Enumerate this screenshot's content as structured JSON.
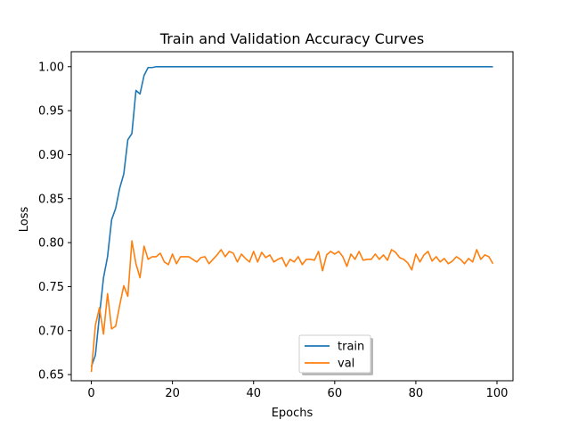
{
  "chart_data": {
    "type": "line",
    "title": "Train and Validation Accuracy Curves",
    "xlabel": "Epochs",
    "ylabel": "Loss",
    "xlim": [
      -4.95,
      103.95
    ],
    "ylim": [
      0.643,
      1.017
    ],
    "xticks": [
      0,
      20,
      40,
      60,
      80,
      100
    ],
    "yticks": [
      0.65,
      0.7,
      0.75,
      0.8,
      0.85,
      0.9,
      0.95,
      1.0
    ],
    "ytick_labels": [
      "0.65",
      "0.70",
      "0.75",
      "0.80",
      "0.85",
      "0.90",
      "0.95",
      "1.00"
    ],
    "grid": false,
    "legend": {
      "position": "lower-center"
    },
    "series": [
      {
        "name": "train",
        "color": "#1f77b4",
        "x": [
          0,
          1,
          2,
          3,
          4,
          5,
          6,
          7,
          8,
          9,
          10,
          11,
          12,
          13,
          14,
          15,
          16,
          17,
          18,
          19,
          20,
          21,
          22,
          23,
          24,
          25,
          26,
          27,
          28,
          29,
          30,
          31,
          32,
          33,
          34,
          35,
          36,
          37,
          38,
          39,
          40,
          41,
          42,
          43,
          44,
          45,
          46,
          47,
          48,
          49,
          50,
          51,
          52,
          53,
          54,
          55,
          56,
          57,
          58,
          59,
          60,
          61,
          62,
          63,
          64,
          65,
          66,
          67,
          68,
          69,
          70,
          71,
          72,
          73,
          74,
          75,
          76,
          77,
          78,
          79,
          80,
          81,
          82,
          83,
          84,
          85,
          86,
          87,
          88,
          89,
          90,
          91,
          92,
          93,
          94,
          95,
          96,
          97,
          98,
          99
        ],
        "values": [
          0.659,
          0.672,
          0.717,
          0.76,
          0.784,
          0.826,
          0.839,
          0.862,
          0.878,
          0.917,
          0.924,
          0.973,
          0.969,
          0.99,
          0.999,
          0.999,
          1.0,
          1.0,
          1.0,
          1.0,
          1.0,
          1.0,
          1.0,
          1.0,
          1.0,
          1.0,
          1.0,
          1.0,
          1.0,
          1.0,
          1.0,
          1.0,
          1.0,
          1.0,
          1.0,
          1.0,
          1.0,
          1.0,
          1.0,
          1.0,
          1.0,
          1.0,
          1.0,
          1.0,
          1.0,
          1.0,
          1.0,
          1.0,
          1.0,
          1.0,
          1.0,
          1.0,
          1.0,
          1.0,
          1.0,
          1.0,
          1.0,
          1.0,
          1.0,
          1.0,
          1.0,
          1.0,
          1.0,
          1.0,
          1.0,
          1.0,
          1.0,
          1.0,
          1.0,
          1.0,
          1.0,
          1.0,
          1.0,
          1.0,
          1.0,
          1.0,
          1.0,
          1.0,
          1.0,
          1.0,
          1.0,
          1.0,
          1.0,
          1.0,
          1.0,
          1.0,
          1.0,
          1.0,
          1.0,
          1.0,
          1.0,
          1.0,
          1.0,
          1.0,
          1.0,
          1.0,
          1.0,
          1.0,
          1.0,
          1.0
        ]
      },
      {
        "name": "val",
        "color": "#ff7f0e",
        "x": [
          0,
          1,
          2,
          3,
          4,
          5,
          6,
          7,
          8,
          9,
          10,
          11,
          12,
          13,
          14,
          15,
          16,
          17,
          18,
          19,
          20,
          21,
          22,
          23,
          24,
          25,
          26,
          27,
          28,
          29,
          30,
          31,
          32,
          33,
          34,
          35,
          36,
          37,
          38,
          39,
          40,
          41,
          42,
          43,
          44,
          45,
          46,
          47,
          48,
          49,
          50,
          51,
          52,
          53,
          54,
          55,
          56,
          57,
          58,
          59,
          60,
          61,
          62,
          63,
          64,
          65,
          66,
          67,
          68,
          69,
          70,
          71,
          72,
          73,
          74,
          75,
          76,
          77,
          78,
          79,
          80,
          81,
          82,
          83,
          84,
          85,
          86,
          87,
          88,
          89,
          90,
          91,
          92,
          93,
          94,
          95,
          96,
          97,
          98,
          99
        ],
        "values": [
          0.653,
          0.706,
          0.726,
          0.696,
          0.742,
          0.702,
          0.705,
          0.729,
          0.751,
          0.739,
          0.802,
          0.776,
          0.76,
          0.796,
          0.781,
          0.784,
          0.784,
          0.788,
          0.778,
          0.775,
          0.787,
          0.776,
          0.784,
          0.784,
          0.784,
          0.781,
          0.778,
          0.783,
          0.784,
          0.776,
          0.781,
          0.786,
          0.792,
          0.784,
          0.79,
          0.788,
          0.778,
          0.787,
          0.782,
          0.778,
          0.79,
          0.778,
          0.789,
          0.783,
          0.786,
          0.778,
          0.781,
          0.783,
          0.773,
          0.781,
          0.778,
          0.784,
          0.775,
          0.781,
          0.781,
          0.78,
          0.79,
          0.768,
          0.786,
          0.79,
          0.787,
          0.79,
          0.784,
          0.773,
          0.787,
          0.781,
          0.79,
          0.78,
          0.781,
          0.781,
          0.787,
          0.781,
          0.786,
          0.78,
          0.792,
          0.789,
          0.783,
          0.781,
          0.777,
          0.769,
          0.787,
          0.778,
          0.786,
          0.79,
          0.779,
          0.784,
          0.778,
          0.782,
          0.776,
          0.779,
          0.784,
          0.781,
          0.776,
          0.782,
          0.778,
          0.792,
          0.781,
          0.786,
          0.784,
          0.776
        ]
      }
    ]
  }
}
